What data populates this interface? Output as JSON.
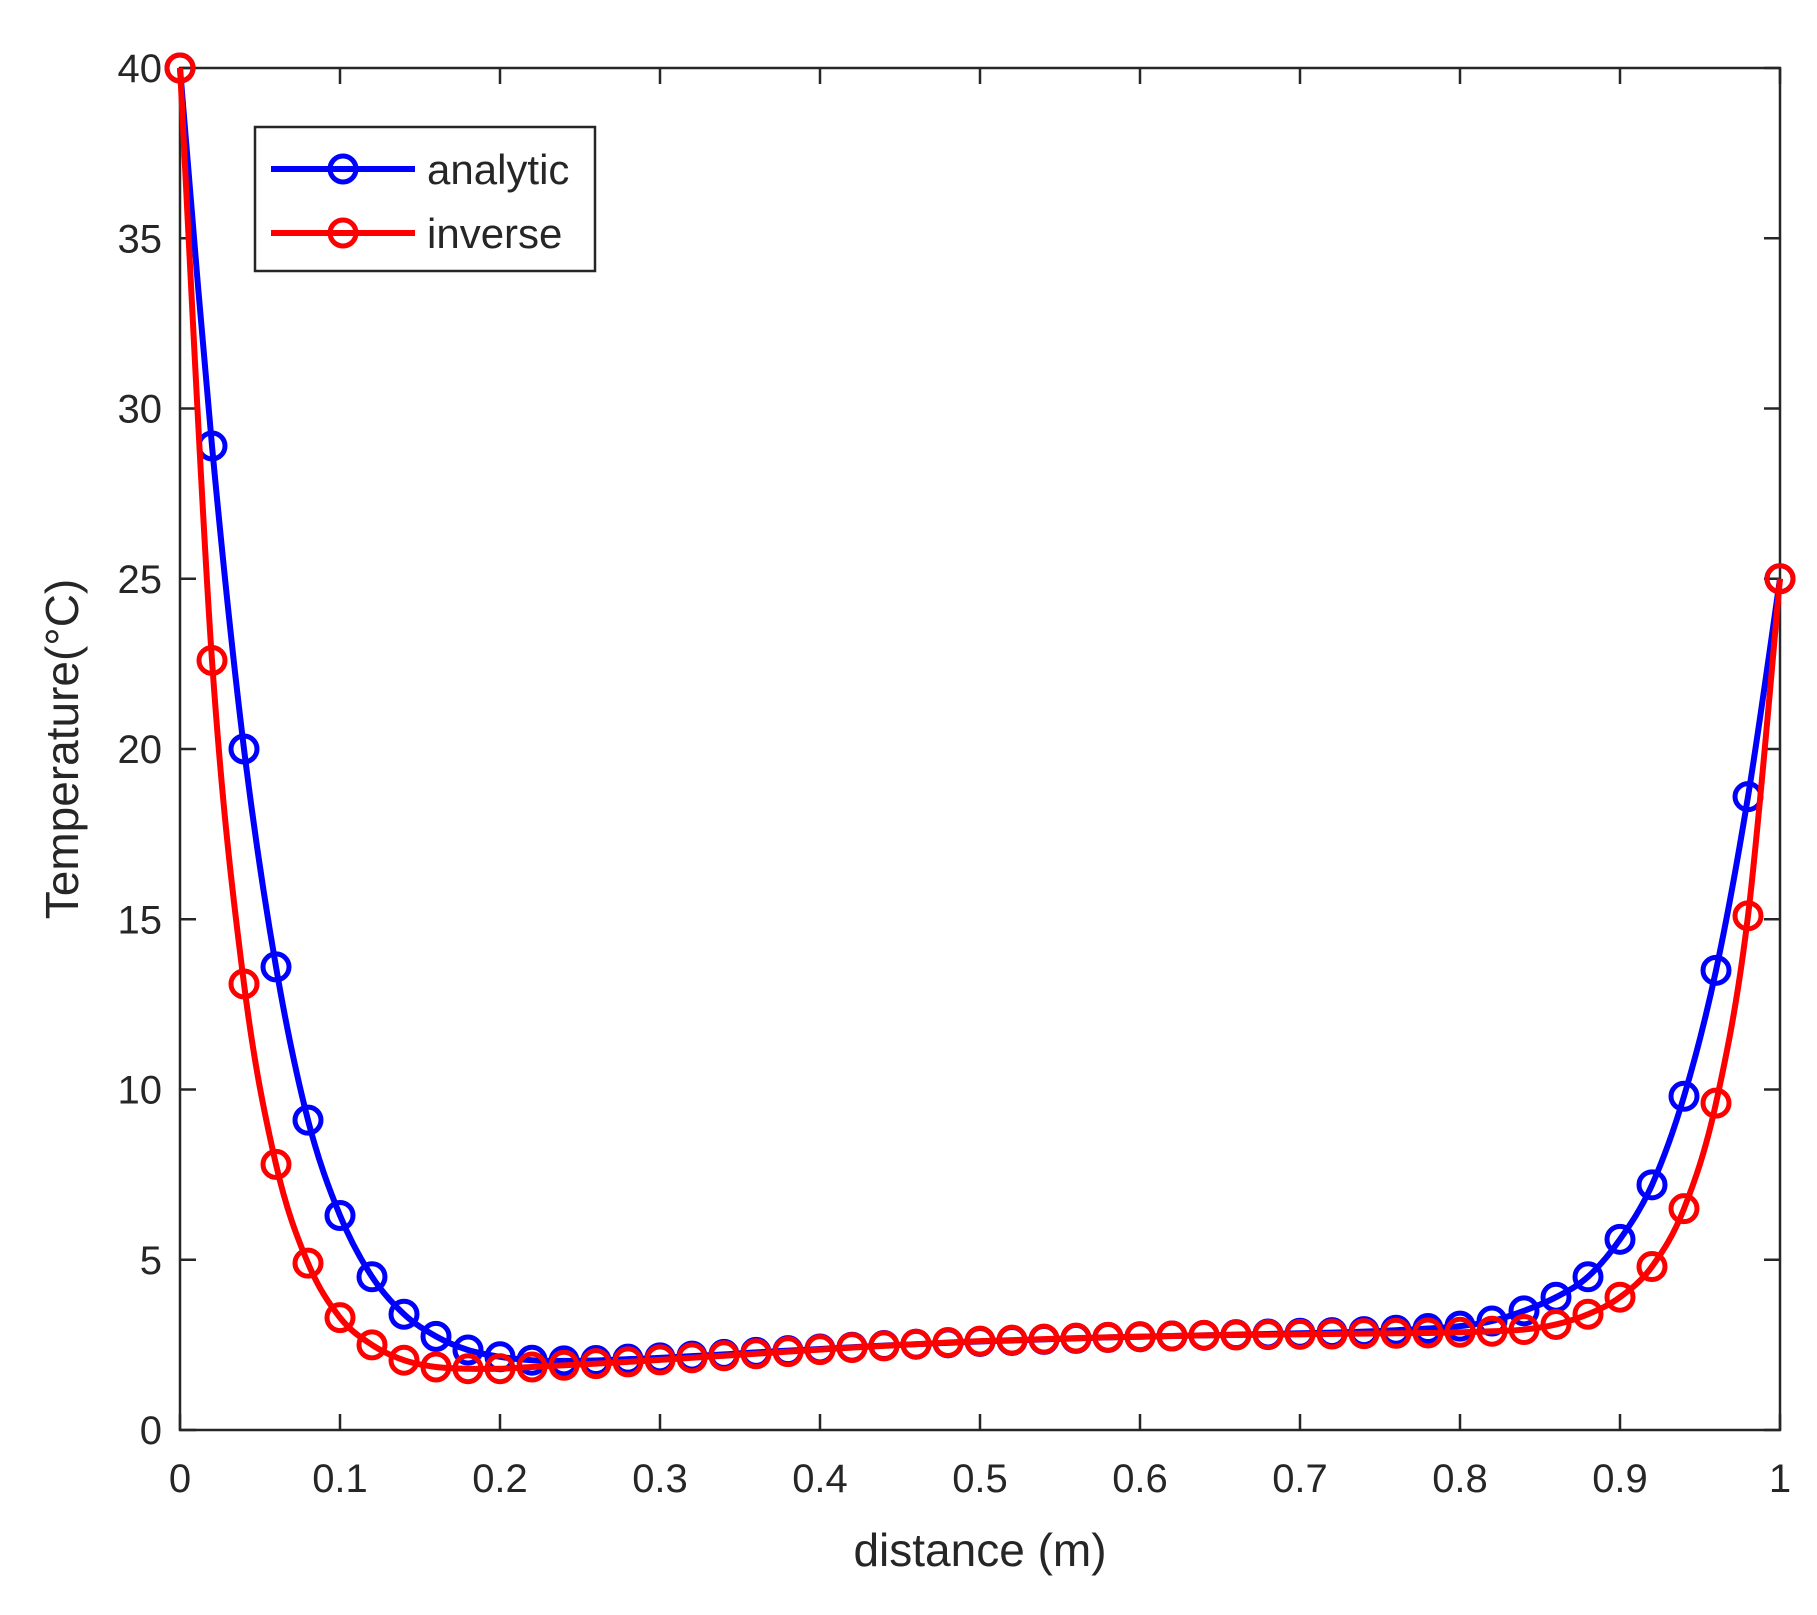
{
  "chart_data": {
    "type": "line",
    "title": "",
    "xlabel": "distance (m)",
    "ylabel": "Temperature(°C)",
    "xlim": [
      0,
      1
    ],
    "ylim": [
      0,
      40
    ],
    "xticks": [
      0,
      0.1,
      0.2,
      0.3,
      0.4,
      0.5,
      0.6,
      0.7,
      0.8,
      0.9,
      1
    ],
    "xtick_labels": [
      "0",
      "0.1",
      "0.2",
      "0.3",
      "0.4",
      "0.5",
      "0.6",
      "0.7",
      "0.8",
      "0.9",
      "1"
    ],
    "yticks": [
      0,
      5,
      10,
      15,
      20,
      25,
      30,
      35,
      40
    ],
    "ytick_labels": [
      "0",
      "5",
      "10",
      "15",
      "20",
      "25",
      "30",
      "35",
      "40"
    ],
    "grid": false,
    "box": true,
    "legend_position": "top-left",
    "marker": "circle",
    "x": [
      0,
      0.02,
      0.04,
      0.06,
      0.08,
      0.1,
      0.12,
      0.14,
      0.16,
      0.18,
      0.2,
      0.22,
      0.24,
      0.26,
      0.28,
      0.3,
      0.32,
      0.34,
      0.36,
      0.38,
      0.4,
      0.42,
      0.44,
      0.46,
      0.48,
      0.5,
      0.52,
      0.54,
      0.56,
      0.58,
      0.6,
      0.62,
      0.64,
      0.66,
      0.68,
      0.7,
      0.72,
      0.74,
      0.76,
      0.78,
      0.8,
      0.82,
      0.84,
      0.86,
      0.88,
      0.9,
      0.92,
      0.94,
      0.96,
      0.98,
      1
    ],
    "series": [
      {
        "name": "analytic",
        "color": "#0000ff",
        "values": [
          40,
          28.9,
          20,
          13.6,
          9.1,
          6.3,
          4.5,
          3.4,
          2.75,
          2.35,
          2.15,
          2.05,
          2.03,
          2.04,
          2.08,
          2.12,
          2.17,
          2.22,
          2.28,
          2.33,
          2.38,
          2.43,
          2.48,
          2.52,
          2.56,
          2.6,
          2.63,
          2.66,
          2.69,
          2.72,
          2.74,
          2.76,
          2.78,
          2.8,
          2.82,
          2.84,
          2.86,
          2.89,
          2.93,
          2.98,
          3.05,
          3.2,
          3.5,
          3.9,
          4.5,
          5.6,
          7.2,
          9.8,
          13.5,
          18.6,
          25
        ]
      },
      {
        "name": "inverse",
        "color": "#ff0000",
        "values": [
          40,
          22.6,
          13.1,
          7.8,
          4.9,
          3.3,
          2.5,
          2.05,
          1.85,
          1.8,
          1.8,
          1.85,
          1.9,
          1.95,
          2.0,
          2.06,
          2.12,
          2.18,
          2.24,
          2.3,
          2.36,
          2.42,
          2.47,
          2.52,
          2.57,
          2.61,
          2.64,
          2.67,
          2.7,
          2.72,
          2.74,
          2.76,
          2.78,
          2.79,
          2.8,
          2.81,
          2.82,
          2.83,
          2.84,
          2.85,
          2.87,
          2.9,
          2.95,
          3.1,
          3.4,
          3.9,
          4.8,
          6.5,
          9.6,
          15.1,
          25
        ]
      }
    ]
  }
}
